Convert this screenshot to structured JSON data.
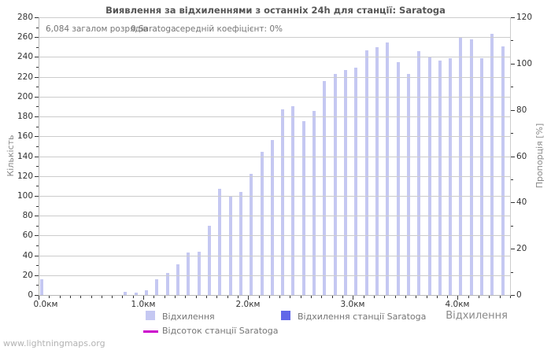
{
  "title": "Виявлення за відхиленнями з останніх 24h для станції: Saratoga",
  "stats": {
    "total_strokes": "6,084 загалом розрядів",
    "station_strokes": "0 Saratoga",
    "avg_ratio": "середній коефіцієнт: 0%"
  },
  "footer": "www.lightningmaps.org",
  "colors": {
    "bar": "#c5c8f2",
    "station_bar": "#6267e8",
    "percent_line": "#cc00cc",
    "grid": "#cccccc",
    "border": "#b8b8b8",
    "tick": "#333333"
  },
  "chart_data": {
    "type": "bar",
    "title": "Виявлення за відхиленнями з останніх 24h для станції: Saratoga",
    "xlabel": "Відхилення",
    "ylabel_left": "Кількість",
    "ylabel_right": "Пропорція [%]",
    "grid": "horizontal",
    "legend_position": "bottom",
    "axes": {
      "left": {
        "min": 0,
        "max": 280,
        "step": 20,
        "minor_step": 10
      },
      "right": {
        "min": 0,
        "max": 120,
        "step": 20,
        "minor_step": 10
      },
      "x": {
        "min_km": 0,
        "max_km": 4.5,
        "minor_step_km": 0.1,
        "major_tick_km": [
          0,
          1,
          2,
          3,
          4
        ],
        "major_tick_labels": [
          "0.0км",
          "1.0км",
          "2.0км",
          "3.0км",
          "4.0км"
        ]
      }
    },
    "series": [
      {
        "name": "Відхилення",
        "type": "bar",
        "color": "#c5c8f2",
        "x_km": [
          0.0,
          0.8,
          0.9,
          1.0,
          1.1,
          1.2,
          1.3,
          1.4,
          1.5,
          1.6,
          1.7,
          1.8,
          1.9,
          2.0,
          2.1,
          2.2,
          2.3,
          2.4,
          2.5,
          2.6,
          2.7,
          2.8,
          2.9,
          3.0,
          3.1,
          3.2,
          3.3,
          3.4,
          3.5,
          3.6,
          3.7,
          3.8,
          3.9,
          4.0,
          4.1,
          4.2,
          4.3,
          4.4
        ],
        "counts": [
          16,
          3,
          2,
          5,
          16,
          22,
          31,
          43,
          44,
          70,
          107,
          99,
          104,
          122,
          144,
          156,
          187,
          190,
          175,
          186,
          216,
          223,
          227,
          229,
          247,
          250,
          255,
          235,
          223,
          246,
          240,
          236,
          239,
          260,
          258,
          239,
          263,
          251
        ]
      },
      {
        "name": "Відхилення станції Saratoga",
        "type": "bar",
        "color": "#6267e8",
        "x_km": [],
        "counts": []
      },
      {
        "name": "Відсоток станції Saratoga",
        "type": "line",
        "color": "#cc00cc",
        "x_km": [],
        "percent": []
      }
    ]
  }
}
